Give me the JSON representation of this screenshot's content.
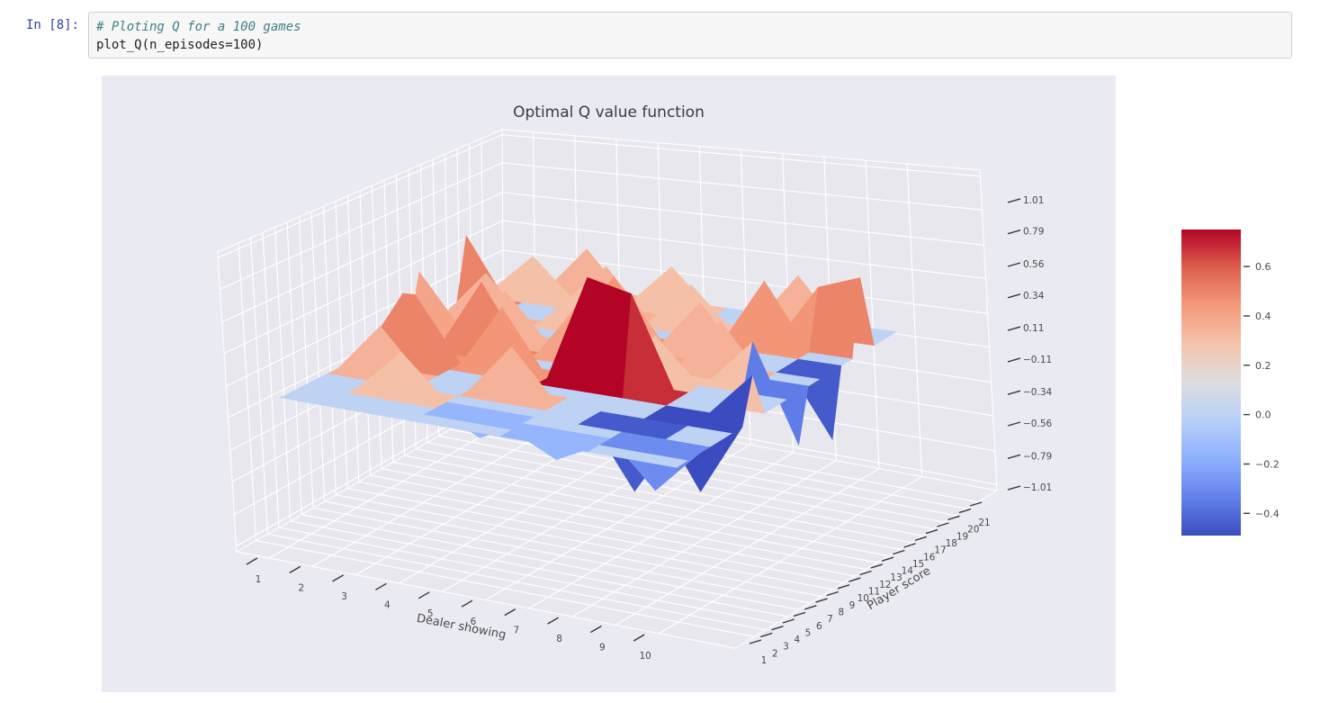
{
  "notebook": {
    "prompt": "In [8]:",
    "code": {
      "comment": "# Ploting Q for a 100 games",
      "line2": "plot_Q(n_episodes=100)"
    }
  },
  "chart_data": {
    "type": "surface3d",
    "title": "Optimal Q value function",
    "xlabel": "Dealer showing",
    "ylabel": "Player score",
    "x_tick_labels": [
      "1",
      "2",
      "3",
      "4",
      "5",
      "6",
      "7",
      "8",
      "9",
      "10"
    ],
    "y_tick_labels": [
      "1",
      "2",
      "3",
      "4",
      "5",
      "6",
      "7",
      "8",
      "9",
      "10",
      "11",
      "12",
      "13",
      "14",
      "15",
      "16",
      "17",
      "18",
      "19",
      "20",
      "21"
    ],
    "z_tick_labels": [
      "1.01",
      "0.79",
      "0.56",
      "0.34",
      "0.11",
      "−0.11",
      "−0.34",
      "−0.56",
      "−0.79",
      "−1.01"
    ],
    "z_tick_values": [
      1.01,
      0.79,
      0.56,
      0.34,
      0.11,
      -0.11,
      -0.34,
      -0.56,
      -0.79,
      -1.01
    ],
    "xlim": [
      0.25,
      11.75
    ],
    "ylim": [
      -0.7,
      22.7
    ],
    "zlim": [
      -1.05,
      1.05
    ],
    "vmin": -0.49,
    "vmax": 0.75,
    "x": [
      1,
      2,
      3,
      4,
      5,
      6,
      7,
      8,
      9,
      10
    ],
    "y": [
      1,
      2,
      3,
      4,
      5,
      6,
      7,
      8,
      9,
      10,
      11,
      12,
      13,
      14,
      15,
      16,
      17,
      18,
      19,
      20,
      21
    ],
    "q_values": [
      [
        0,
        0,
        0,
        0,
        0,
        0,
        0,
        0,
        0,
        0
      ],
      [
        0,
        0,
        0,
        0,
        0,
        0,
        -0.15,
        0,
        0,
        0
      ],
      [
        0,
        0,
        0,
        0,
        -0.15,
        0,
        0,
        0,
        -0.3,
        0
      ],
      [
        0,
        0,
        0.3,
        0,
        0,
        0,
        0,
        0,
        0,
        0
      ],
      [
        0,
        0,
        0,
        0,
        0,
        0,
        0,
        -0.45,
        0,
        0
      ],
      [
        0,
        0.35,
        0,
        0,
        0.35,
        0,
        0,
        0,
        0,
        0
      ],
      [
        0,
        0,
        0,
        0,
        0,
        0,
        0,
        0,
        -0.49,
        0
      ],
      [
        0,
        0.5,
        0,
        0,
        0,
        0,
        0,
        0,
        0,
        0.3
      ],
      [
        0,
        0.45,
        0,
        0.45,
        0,
        0.75,
        0.68,
        0,
        0,
        0
      ],
      [
        0,
        0,
        0,
        0,
        0,
        0,
        0,
        0,
        0,
        0
      ],
      [
        0,
        0,
        0.5,
        0,
        0,
        0,
        0.3,
        0,
        0,
        0
      ],
      [
        0,
        0,
        0,
        0,
        0.4,
        0,
        0,
        0,
        0.3,
        -0.35
      ],
      [
        0.4,
        0,
        0.35,
        0,
        0,
        0.4,
        0,
        0.35,
        0,
        0
      ],
      [
        0,
        0,
        0,
        0,
        0,
        0,
        0,
        0,
        0,
        0
      ],
      [
        0,
        0.35,
        0,
        0,
        0.45,
        0,
        0.35,
        0,
        0,
        -0.45
      ],
      [
        0,
        0,
        0,
        0.3,
        0,
        0,
        0,
        0,
        0,
        0
      ],
      [
        0.5,
        0,
        0,
        0,
        0,
        0,
        0,
        0.45,
        0,
        0
      ],
      [
        0,
        0,
        0,
        0.35,
        0,
        0.3,
        0,
        0,
        0.4,
        0.5
      ],
      [
        0,
        0.3,
        0,
        0,
        0,
        0,
        0,
        0,
        0,
        0
      ],
      [
        0,
        0,
        0.35,
        0,
        0.3,
        0,
        0,
        0.35,
        0,
        0
      ],
      [
        0,
        0,
        0,
        0,
        0,
        0,
        0,
        0,
        0,
        0
      ]
    ],
    "colormap": "coolwarm",
    "colormap_stops": [
      [
        0.0,
        59,
        76,
        192
      ],
      [
        0.125,
        98,
        130,
        234
      ],
      [
        0.25,
        141,
        176,
        254
      ],
      [
        0.375,
        184,
        208,
        249
      ],
      [
        0.5,
        221,
        221,
        221
      ],
      [
        0.625,
        245,
        196,
        173
      ],
      [
        0.75,
        244,
        154,
        123
      ],
      [
        0.875,
        222,
        96,
        77
      ],
      [
        1.0,
        180,
        4,
        38
      ]
    ],
    "colorbar": {
      "tick_labels": [
        "0.6",
        "0.4",
        "0.2",
        "0.0",
        "−0.2",
        "−0.4"
      ],
      "tick_values": [
        0.6,
        0.4,
        0.2,
        0.0,
        -0.2,
        -0.4
      ],
      "top_value": 0.75,
      "bottom_value": -0.49
    },
    "styles": {
      "axes_bg": "#eaeaf2",
      "pane": "#e7e7ed",
      "grid": "#ffffff",
      "tick_color": "#3a3a3a",
      "label_color": "#4a4a4a",
      "title_color": "#3c3c3c"
    }
  }
}
